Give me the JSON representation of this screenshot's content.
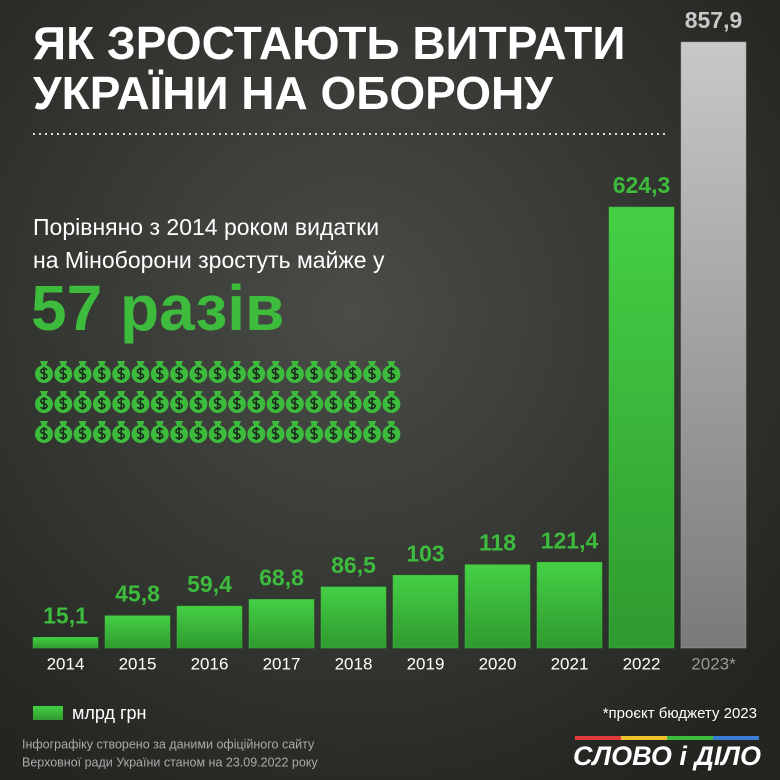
{
  "chart_data": {
    "type": "bar",
    "title": [
      "ЯК ЗРОСТАЮТЬ ВИТРАТИ",
      "УКРАЇНИ НА ОБОРОНУ"
    ],
    "subtitle": [
      "Порівняно з 2014 роком видатки",
      "на Міноборони зростуть майже у"
    ],
    "highlight": "57 разів",
    "categories": [
      "2014",
      "2015",
      "2016",
      "2017",
      "2018",
      "2019",
      "2020",
      "2021",
      "2022",
      "2023*"
    ],
    "values": [
      15.1,
      45.8,
      59.4,
      68.8,
      86.5,
      103,
      118,
      121.4,
      624.3,
      857.9
    ],
    "value_labels": [
      "15,1",
      "45,8",
      "59,4",
      "68,8",
      "86,5",
      "103",
      "118",
      "121,4",
      "624,3",
      "857,9"
    ],
    "colors": [
      "#3dbb3d",
      "#3dbb3d",
      "#3dbb3d",
      "#3dbb3d",
      "#3dbb3d",
      "#3dbb3d",
      "#3dbb3d",
      "#3dbb3d",
      "#3dbb3d",
      "#a0a0a0"
    ],
    "legend": "млрд грн",
    "note": "*проєкт бюджету 2023",
    "source": [
      "Інфографіку створено за даними офіційного сайту",
      "Верховної ради України станом на 23.09.2022 року"
    ],
    "logo": "СЛОВО і ДІЛО"
  }
}
